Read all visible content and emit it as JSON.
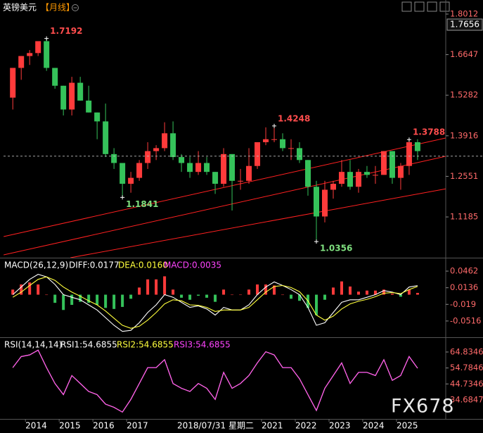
{
  "header": {
    "symbol": "英镑美元",
    "period": "【月线】"
  },
  "watermark": "FX678",
  "chart_data": [
    {
      "type": "candlestick",
      "x": [
        2013.625,
        2013.875,
        2014.125,
        2014.375,
        2014.625,
        2014.875,
        2015.125,
        2015.375,
        2015.625,
        2015.875,
        2016.125,
        2016.375,
        2016.625,
        2016.875,
        2017.125,
        2017.375,
        2017.625,
        2017.875,
        2018.125,
        2018.375,
        2018.625,
        2018.875,
        2019.125,
        2019.375,
        2019.625,
        2019.875,
        2020.125,
        2020.375,
        2020.625,
        2020.875,
        2021.125,
        2021.375,
        2021.625,
        2021.875,
        2022.125,
        2022.375,
        2022.625,
        2022.875,
        2023.125,
        2023.375,
        2023.625,
        2023.875,
        2024.125,
        2024.375,
        2024.625,
        2024.875,
        2025.125,
        2025.375,
        2025.625
      ],
      "open": [
        1.52,
        1.62,
        1.66,
        1.67,
        1.71,
        1.62,
        1.56,
        1.48,
        1.57,
        1.51,
        1.47,
        1.44,
        1.33,
        1.3,
        1.23,
        1.25,
        1.3,
        1.34,
        1.35,
        1.4,
        1.32,
        1.3,
        1.27,
        1.3,
        1.27,
        1.23,
        1.33,
        1.24,
        1.24,
        1.29,
        1.37,
        1.38,
        1.38,
        1.35,
        1.35,
        1.31,
        1.22,
        1.12,
        1.21,
        1.23,
        1.27,
        1.22,
        1.27,
        1.26,
        1.26,
        1.34,
        1.25,
        1.29,
        1.37
      ],
      "high": [
        1.62,
        1.66,
        1.68,
        1.71,
        1.7192,
        1.62,
        1.56,
        1.59,
        1.59,
        1.56,
        1.47,
        1.5,
        1.35,
        1.3,
        1.27,
        1.31,
        1.37,
        1.36,
        1.437,
        1.44,
        1.33,
        1.32,
        1.34,
        1.32,
        1.27,
        1.35,
        1.33,
        1.28,
        1.35,
        1.37,
        1.42,
        1.4248,
        1.4,
        1.38,
        1.37,
        1.31,
        1.24,
        1.24,
        1.24,
        1.31,
        1.31,
        1.28,
        1.29,
        1.29,
        1.34,
        1.34,
        1.3,
        1.3788,
        1.38
      ],
      "low": [
        1.48,
        1.58,
        1.63,
        1.66,
        1.61,
        1.55,
        1.46,
        1.46,
        1.51,
        1.47,
        1.38,
        1.32,
        1.28,
        1.1841,
        1.2,
        1.24,
        1.28,
        1.31,
        1.34,
        1.31,
        1.27,
        1.25,
        1.26,
        1.26,
        1.196,
        1.22,
        1.14,
        1.21,
        1.23,
        1.28,
        1.36,
        1.37,
        1.34,
        1.31,
        1.3,
        1.19,
        1.0356,
        1.1,
        1.18,
        1.22,
        1.21,
        1.2,
        1.25,
        1.23,
        1.26,
        1.23,
        1.21,
        1.26,
        1.31
      ],
      "close": [
        1.62,
        1.66,
        1.67,
        1.71,
        1.62,
        1.56,
        1.48,
        1.57,
        1.51,
        1.47,
        1.44,
        1.33,
        1.3,
        1.23,
        1.25,
        1.3,
        1.34,
        1.35,
        1.4,
        1.32,
        1.3,
        1.27,
        1.3,
        1.27,
        1.23,
        1.33,
        1.24,
        1.24,
        1.29,
        1.37,
        1.38,
        1.38,
        1.35,
        1.35,
        1.31,
        1.22,
        1.12,
        1.21,
        1.23,
        1.27,
        1.22,
        1.27,
        1.26,
        1.26,
        1.34,
        1.25,
        1.29,
        1.37,
        1.34
      ],
      "up_color": "#ff3b3b",
      "down_color": "#35c25a",
      "xlim": [
        2013.35,
        2026.46
      ],
      "xticks": [
        2014,
        2015,
        2016,
        2017,
        2021,
        2022,
        2023,
        2024,
        2025
      ],
      "ylim": [
        0.9813,
        1.8367
      ],
      "yticks": [
        1.8012,
        1.6647,
        1.5282,
        1.3916,
        1.2551,
        1.1185
      ],
      "crosshair_y_label": 1.7656,
      "crosshair_x_label": "2018/07/31 星期二",
      "last_price": 1.323,
      "trend_lines": [
        {
          "x": [
            2013.354,
            2026.458
          ],
          "y": [
            1.0523,
            1.3841
          ],
          "color": "#ff2020"
        },
        {
          "x": [
            2013.354,
            2026.458
          ],
          "y": [
            0.9907,
            1.3225
          ],
          "color": "#ff2020"
        },
        {
          "x": [
            2015.333,
            2026.458
          ],
          "y": [
            0.9812,
            1.213
          ],
          "color": "#ff2020"
        }
      ],
      "high_labels": [
        {
          "x": 2014.625,
          "value": 1.7192
        },
        {
          "x": 2021.375,
          "value": 1.4248
        },
        {
          "x": 2025.375,
          "value": 1.3788
        }
      ],
      "low_labels": [
        {
          "x": 2016.875,
          "value": 1.1841
        },
        {
          "x": 2022.625,
          "value": 1.0356
        }
      ]
    },
    {
      "type": "macd",
      "title": "MACD(26,12,9)",
      "ylim": [
        -0.0821,
        0.067
      ],
      "yticks": [
        0.0462,
        0.0136,
        -0.019,
        -0.0516
      ],
      "series": [
        {
          "name": "DIFF:0.0177",
          "color": "#ffffff",
          "values": [
            0.0,
            0.015,
            0.03,
            0.04,
            0.035,
            0.02,
            0.0,
            -0.005,
            -0.01,
            -0.02,
            -0.03,
            -0.045,
            -0.06,
            -0.072,
            -0.07,
            -0.055,
            -0.035,
            -0.02,
            0.0,
            -0.005,
            -0.015,
            -0.025,
            -0.022,
            -0.028,
            -0.04,
            -0.025,
            -0.03,
            -0.03,
            -0.02,
            0.0,
            0.015,
            0.025,
            0.018,
            0.01,
            0.0,
            -0.025,
            -0.06,
            -0.055,
            -0.035,
            -0.015,
            -0.01,
            -0.01,
            -0.005,
            0.0,
            0.008,
            0.005,
            0.0,
            0.015,
            0.0177
          ]
        },
        {
          "name": "DEA:0.0160",
          "color": "#ffff3c",
          "values": [
            -0.005,
            0.005,
            0.018,
            0.03,
            0.035,
            0.028,
            0.015,
            0.005,
            -0.003,
            -0.012,
            -0.02,
            -0.032,
            -0.046,
            -0.06,
            -0.066,
            -0.062,
            -0.05,
            -0.035,
            -0.018,
            -0.01,
            -0.012,
            -0.02,
            -0.021,
            -0.025,
            -0.033,
            -0.03,
            -0.03,
            -0.03,
            -0.025,
            -0.01,
            0.005,
            0.016,
            0.018,
            0.014,
            0.006,
            -0.012,
            -0.04,
            -0.05,
            -0.042,
            -0.028,
            -0.018,
            -0.013,
            -0.009,
            -0.004,
            0.003,
            0.004,
            0.002,
            0.01,
            0.016
          ]
        }
      ],
      "histogram": {
        "name": "MACD:0.0035",
        "color": "#ff44ff",
        "up_color": "#ff3b3b",
        "down_color": "#35c25a",
        "values": [
          0.01,
          0.02,
          0.024,
          0.02,
          0.0,
          -0.016,
          -0.03,
          -0.02,
          -0.014,
          -0.016,
          -0.02,
          -0.026,
          -0.028,
          -0.024,
          -0.008,
          0.014,
          0.03,
          0.03,
          0.036,
          0.01,
          -0.006,
          -0.01,
          -0.002,
          -0.006,
          -0.014,
          0.01,
          0.0,
          0.0,
          0.01,
          0.02,
          0.02,
          0.018,
          0.0,
          -0.008,
          -0.012,
          -0.026,
          -0.04,
          -0.01,
          0.014,
          0.026,
          0.016,
          0.006,
          0.008,
          0.008,
          0.01,
          0.002,
          -0.004,
          0.01,
          0.0035
        ]
      }
    },
    {
      "type": "rsi",
      "title": "RSI(14,14,14)",
      "ylim": [
        22.7,
        72.8
      ],
      "yticks": [
        64.8346,
        54.7846,
        44.7346,
        34.6847
      ],
      "series": [
        {
          "name": "RSI1:54.6855",
          "color": "#ffffff",
          "values": [
            55,
            62,
            63,
            66,
            55,
            45,
            38,
            50,
            45,
            40,
            38,
            32,
            30,
            27,
            35,
            45,
            55,
            55,
            60,
            45,
            42,
            40,
            45,
            42,
            35,
            52,
            42,
            45,
            50,
            58,
            65,
            63,
            55,
            55,
            48,
            38,
            28,
            42,
            50,
            58,
            45,
            52,
            52,
            50,
            60,
            47,
            50,
            62,
            54.6855
          ]
        },
        {
          "name": "RSI2:54.6855",
          "color": "#ffff3c",
          "values": [
            55,
            62,
            63,
            66,
            55,
            45,
            38,
            50,
            45,
            40,
            38,
            32,
            30,
            27,
            35,
            45,
            55,
            55,
            60,
            45,
            42,
            40,
            45,
            42,
            35,
            52,
            42,
            45,
            50,
            58,
            65,
            63,
            55,
            55,
            48,
            38,
            28,
            42,
            50,
            58,
            45,
            52,
            52,
            50,
            60,
            47,
            50,
            62,
            54.6855
          ]
        },
        {
          "name": "RSI3:54.6855",
          "color": "#ff44ff",
          "values": [
            55,
            62,
            63,
            66,
            55,
            45,
            38,
            50,
            45,
            40,
            38,
            32,
            30,
            27,
            35,
            45,
            55,
            55,
            60,
            45,
            42,
            40,
            45,
            42,
            35,
            52,
            42,
            45,
            50,
            58,
            65,
            63,
            55,
            55,
            48,
            38,
            28,
            42,
            50,
            58,
            45,
            52,
            52,
            50,
            60,
            47,
            50,
            62,
            54.6855
          ]
        }
      ]
    }
  ]
}
